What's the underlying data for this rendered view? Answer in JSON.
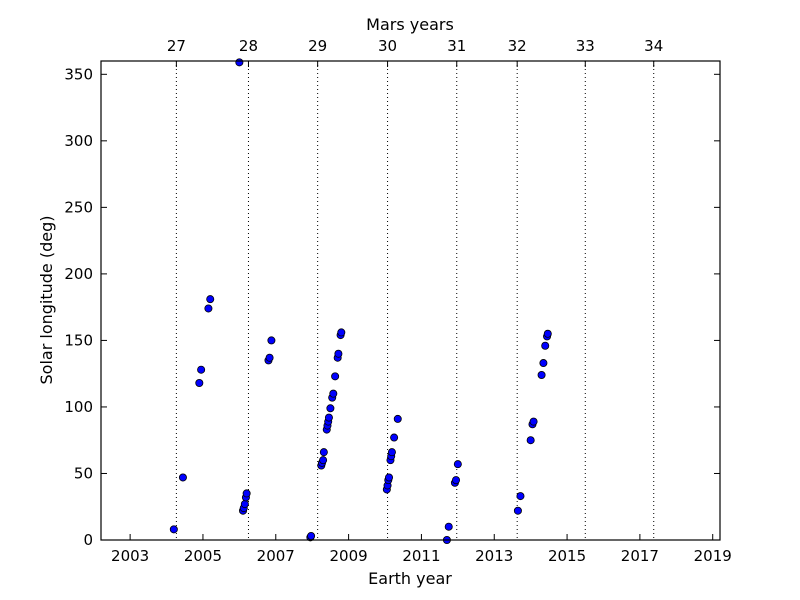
{
  "chart_data": {
    "type": "scatter",
    "title": "",
    "xlabel": "Earth year",
    "ylabel": "Solar longitude (deg)",
    "top_axis_label": "Mars years",
    "xlim": [
      2002.2,
      2019.2
    ],
    "ylim": [
      0,
      360
    ],
    "x_ticks": [
      2003,
      2005,
      2007,
      2009,
      2011,
      2013,
      2015,
      2017,
      2019
    ],
    "x_tick_labels": [
      "2003",
      "2005",
      "2007",
      "2009",
      "2011",
      "2013",
      "2015",
      "2017",
      "2019"
    ],
    "y_ticks": [
      0,
      50,
      100,
      150,
      200,
      250,
      300,
      350
    ],
    "y_tick_labels": [
      "0",
      "50",
      "100",
      "150",
      "200",
      "250",
      "300",
      "350"
    ],
    "mars_year_ticks": [
      2004.27,
      2006.25,
      2008.15,
      2010.07,
      2011.97,
      2013.63,
      2015.5,
      2017.38
    ],
    "mars_year_labels": [
      "27",
      "28",
      "29",
      "30",
      "31",
      "32",
      "33",
      "34"
    ],
    "grid": "vertical dotted lines at Mars year boundaries",
    "marker_color": "#0000ff",
    "points": [
      [
        2004.2,
        8
      ],
      [
        2004.45,
        47
      ],
      [
        2004.9,
        118
      ],
      [
        2004.95,
        128
      ],
      [
        2005.15,
        174
      ],
      [
        2005.2,
        181
      ],
      [
        2006.0,
        359
      ],
      [
        2006.1,
        22
      ],
      [
        2006.12,
        24
      ],
      [
        2006.15,
        27
      ],
      [
        2006.18,
        32
      ],
      [
        2006.2,
        35
      ],
      [
        2006.8,
        135
      ],
      [
        2006.83,
        137
      ],
      [
        2006.88,
        150
      ],
      [
        2007.95,
        2
      ],
      [
        2007.97,
        3
      ],
      [
        2008.25,
        56
      ],
      [
        2008.27,
        58
      ],
      [
        2008.3,
        60
      ],
      [
        2008.32,
        66
      ],
      [
        2008.4,
        83
      ],
      [
        2008.42,
        86
      ],
      [
        2008.44,
        89
      ],
      [
        2008.46,
        92
      ],
      [
        2008.5,
        99
      ],
      [
        2008.55,
        107
      ],
      [
        2008.58,
        110
      ],
      [
        2008.63,
        123
      ],
      [
        2008.7,
        137
      ],
      [
        2008.72,
        140
      ],
      [
        2008.78,
        154
      ],
      [
        2008.8,
        156
      ],
      [
        2010.05,
        38
      ],
      [
        2010.07,
        41
      ],
      [
        2010.09,
        45
      ],
      [
        2010.11,
        47
      ],
      [
        2010.15,
        60
      ],
      [
        2010.17,
        63
      ],
      [
        2010.19,
        66
      ],
      [
        2010.25,
        77
      ],
      [
        2010.35,
        91
      ],
      [
        2011.7,
        0
      ],
      [
        2011.75,
        10
      ],
      [
        2011.92,
        43
      ],
      [
        2011.95,
        45
      ],
      [
        2012.0,
        57
      ],
      [
        2013.65,
        22
      ],
      [
        2013.72,
        33
      ],
      [
        2014.0,
        75
      ],
      [
        2014.05,
        87
      ],
      [
        2014.08,
        89
      ],
      [
        2014.3,
        124
      ],
      [
        2014.35,
        133
      ],
      [
        2014.4,
        146
      ],
      [
        2014.45,
        153
      ],
      [
        2014.47,
        155
      ]
    ]
  }
}
